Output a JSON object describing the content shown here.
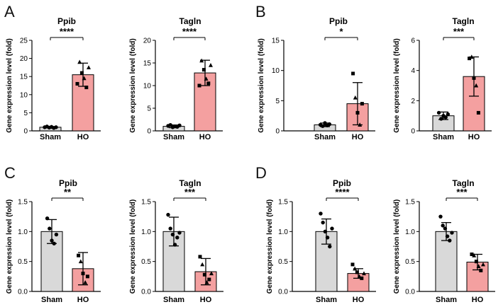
{
  "panels": [
    "A",
    "B",
    "C",
    "D"
  ],
  "ylabel": "Gene expression level (fold)",
  "colors": {
    "sham_fill": "#d9d9d9",
    "ho_fill": "#f4a0a0",
    "edge": "#000000"
  },
  "chart_data": [
    {
      "type": "bar",
      "title": "Ppib",
      "ylabel": "Gene expression level (fold)",
      "ylim": [
        0,
        25
      ],
      "yticks": [
        0,
        5,
        10,
        15,
        20,
        25
      ],
      "tick_labels": [
        "0",
        "5",
        "10",
        "15",
        "20",
        "25"
      ],
      "categories": [
        "Sham",
        "HO"
      ],
      "values": [
        1.0,
        15.5
      ],
      "errors": [
        0.2,
        3.2
      ],
      "points": [
        [
          1.0,
          1.2,
          0.9,
          1.1,
          0.8,
          1.0
        ],
        [
          13,
          19,
          16,
          14.5,
          12,
          17.5
        ]
      ],
      "significance": "****"
    },
    {
      "type": "bar",
      "title": "Tagln",
      "ylabel": "Gene expression level (fold)",
      "ylim": [
        0,
        20
      ],
      "yticks": [
        0,
        5,
        10,
        15,
        20
      ],
      "tick_labels": [
        "0",
        "5",
        "10",
        "15",
        "20"
      ],
      "categories": [
        "Sham",
        "HO"
      ],
      "values": [
        1.0,
        12.8
      ],
      "errors": [
        0.3,
        2.8
      ],
      "points": [
        [
          1.1,
          1.3,
          0.8,
          1.0,
          0.9,
          1.2
        ],
        [
          10,
          15.5,
          13.5,
          11.5,
          10.5,
          14.5
        ]
      ],
      "significance": "****"
    },
    {
      "type": "bar",
      "title": "Ppib",
      "ylabel": "Gene expression level (fold)",
      "ylim": [
        0,
        15
      ],
      "yticks": [
        0,
        5,
        10,
        15
      ],
      "tick_labels": [
        "0",
        "5",
        "10",
        "15"
      ],
      "categories": [
        "Sham",
        "HO"
      ],
      "values": [
        1.0,
        4.5
      ],
      "errors": [
        0.3,
        3.5
      ],
      "points": [
        [
          1.0,
          0.8,
          1.3,
          0.9,
          1.1
        ],
        [
          9.5,
          5.5,
          3.0,
          1.0,
          4.5
        ]
      ],
      "significance": "*"
    },
    {
      "type": "bar",
      "title": "Tagln",
      "ylabel": "Gene expression level (fold)",
      "ylim": [
        0,
        6
      ],
      "yticks": [
        0,
        2,
        4,
        6
      ],
      "tick_labels": [
        "0",
        "2",
        "4",
        "6"
      ],
      "categories": [
        "Sham",
        "HO"
      ],
      "values": [
        1.0,
        3.6
      ],
      "errors": [
        0.25,
        1.3
      ],
      "points": [
        [
          1.2,
          0.8,
          1.0,
          0.9,
          1.1
        ],
        [
          4.8,
          4.9,
          3.5,
          3.0,
          1.2
        ]
      ],
      "significance": "***"
    },
    {
      "type": "bar",
      "title": "Ppib",
      "ylabel": "Gene expression level (fold)",
      "ylim": [
        0,
        1.5
      ],
      "yticks": [
        0,
        0.5,
        1.0,
        1.5
      ],
      "tick_labels": [
        "0.0",
        "0.5",
        "1.0",
        "1.5"
      ],
      "categories": [
        "Sham",
        "HO"
      ],
      "values": [
        1.0,
        0.38
      ],
      "errors": [
        0.2,
        0.27
      ],
      "points": [
        [
          1.22,
          1.05,
          0.85,
          0.8,
          0.95
        ],
        [
          0.6,
          0.5,
          0.3,
          0.15,
          0.25
        ]
      ],
      "significance": "**"
    },
    {
      "type": "bar",
      "title": "Tagln",
      "ylabel": "Gene expression level (fold)",
      "ylim": [
        0,
        1.5
      ],
      "yticks": [
        0,
        0.5,
        1.0,
        1.5
      ],
      "tick_labels": [
        "0.0",
        "0.5",
        "1.0",
        "1.5"
      ],
      "categories": [
        "Sham",
        "HO"
      ],
      "values": [
        1.0,
        0.33
      ],
      "errors": [
        0.24,
        0.22
      ],
      "points": [
        [
          1.28,
          1.05,
          0.95,
          0.78,
          0.9,
          0.98
        ],
        [
          0.58,
          0.45,
          0.28,
          0.15,
          0.2,
          0.3
        ]
      ],
      "significance": "***"
    },
    {
      "type": "bar",
      "title": "Ppib",
      "ylabel": "Gene expression level (fold)",
      "ylim": [
        0,
        1.5
      ],
      "yticks": [
        0,
        0.5,
        1.0,
        1.5
      ],
      "tick_labels": [
        "0.0",
        "0.5",
        "1.0",
        "1.5"
      ],
      "categories": [
        "Sham",
        "HO"
      ],
      "values": [
        1.0,
        0.3
      ],
      "errors": [
        0.21,
        0.08
      ],
      "points": [
        [
          1.3,
          1.15,
          1.0,
          0.9,
          0.75,
          1.05
        ],
        [
          0.45,
          0.38,
          0.32,
          0.25,
          0.22,
          0.3
        ]
      ],
      "significance": "****"
    },
    {
      "type": "bar",
      "title": "Tagln",
      "ylabel": "Gene expression level (fold)",
      "ylim": [
        0,
        1.5
      ],
      "yticks": [
        0,
        0.5,
        1.0,
        1.5
      ],
      "tick_labels": [
        "0.0",
        "0.5",
        "1.0",
        "1.5"
      ],
      "categories": [
        "Sham",
        "HO"
      ],
      "values": [
        1.0,
        0.49
      ],
      "errors": [
        0.15,
        0.13
      ],
      "points": [
        [
          1.25,
          1.1,
          1.05,
          0.92,
          0.85,
          0.98
        ],
        [
          0.62,
          0.6,
          0.5,
          0.42,
          0.35,
          0.45
        ]
      ],
      "significance": "***"
    }
  ]
}
